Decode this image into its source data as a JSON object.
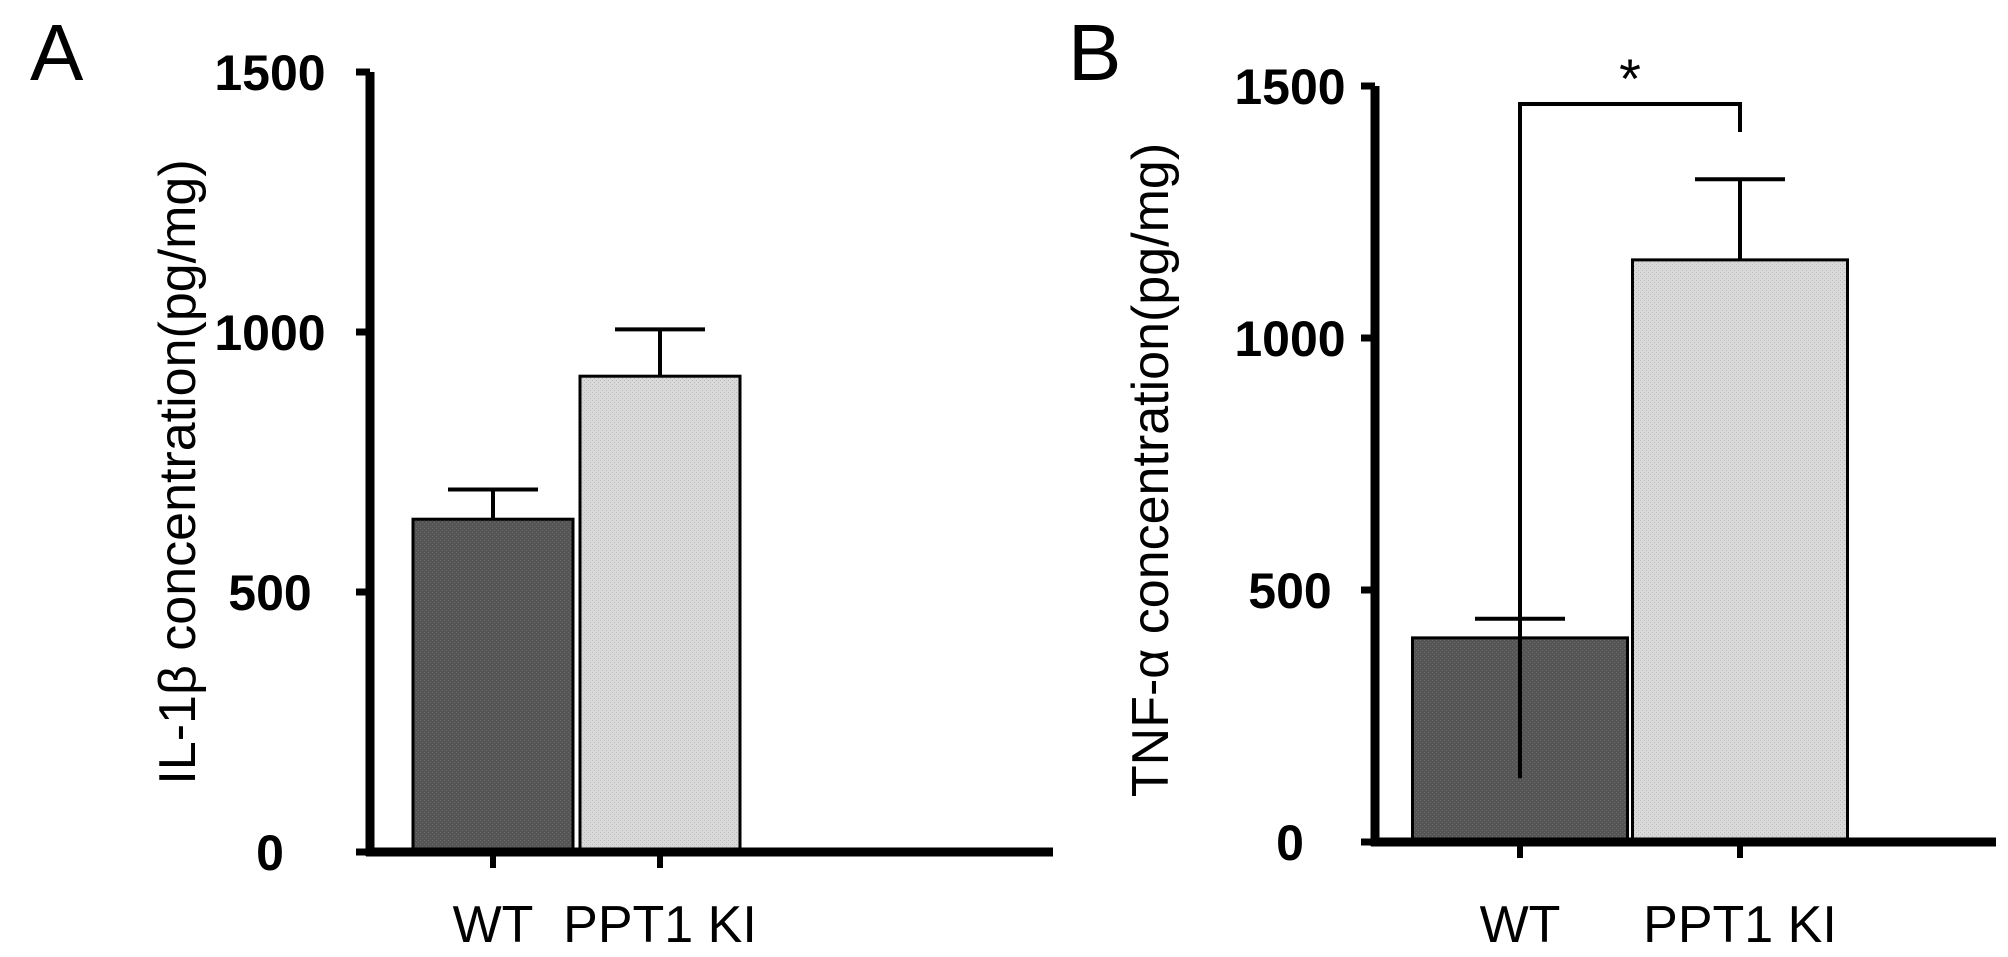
{
  "chart_data": [
    {
      "type": "bar",
      "panel_label": "A",
      "ylabel": "IL-1β concentration(pg/mg)",
      "xlabel": "",
      "categories": [
        "WT",
        "PPT1 KI"
      ],
      "values": [
        640,
        915
      ],
      "error": [
        57,
        90
      ],
      "ylim": [
        0,
        1500
      ],
      "yticks": [
        0,
        500,
        1000,
        1500
      ],
      "colors": [
        "#555555",
        "#d6d6d6"
      ],
      "significance": null
    },
    {
      "type": "bar",
      "panel_label": "B",
      "ylabel": "TNF-α concentration(pg/mg)",
      "xlabel": "",
      "categories": [
        "WT",
        "PPT1 KI"
      ],
      "values": [
        405,
        1155
      ],
      "error": [
        38,
        160
      ],
      "ylim": [
        0,
        1500
      ],
      "yticks": [
        0,
        500,
        1000,
        1500
      ],
      "colors": [
        "#555555",
        "#d6d6d6"
      ],
      "significance": {
        "between": [
          0,
          1
        ],
        "label": "*"
      }
    }
  ]
}
